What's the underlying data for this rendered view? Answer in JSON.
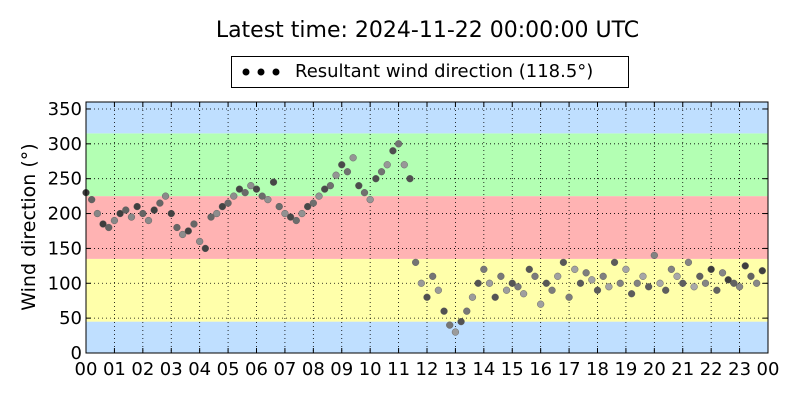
{
  "chart_data": {
    "type": "scatter",
    "title": "Latest time: 2024-11-22 00:00:00 UTC",
    "ylabel": "Wind direction (°)",
    "xlabel": "",
    "legend": {
      "label": "Resultant wind direction (118.5°)",
      "placement": "top-center"
    },
    "xlim": [
      0,
      24
    ],
    "ylim": [
      0,
      360
    ],
    "xticks": [
      "00",
      "01",
      "02",
      "03",
      "04",
      "05",
      "06",
      "07",
      "08",
      "09",
      "10",
      "11",
      "12",
      "13",
      "14",
      "15",
      "16",
      "17",
      "18",
      "19",
      "20",
      "21",
      "22",
      "23",
      "00"
    ],
    "yticks": [
      0,
      50,
      100,
      150,
      200,
      250,
      300,
      350
    ],
    "grid": true,
    "background_bands": [
      {
        "from": 0,
        "to": 45,
        "color": "#bfdfff"
      },
      {
        "from": 45,
        "to": 135,
        "color": "#ffffaa"
      },
      {
        "from": 135,
        "to": 225,
        "color": "#ffb3b3"
      },
      {
        "from": 225,
        "to": 315,
        "color": "#b3ffb3"
      },
      {
        "from": 315,
        "to": 360,
        "color": "#bfdfff"
      }
    ],
    "series": [
      {
        "name": "Resultant wind direction (118.5°)",
        "x": [
          0.0,
          0.2,
          0.4,
          0.6,
          0.8,
          1.0,
          1.2,
          1.4,
          1.6,
          1.8,
          2.0,
          2.2,
          2.4,
          2.6,
          2.8,
          3.0,
          3.2,
          3.4,
          3.6,
          3.8,
          4.0,
          4.2,
          4.4,
          4.6,
          4.8,
          5.0,
          5.2,
          5.4,
          5.6,
          5.8,
          6.0,
          6.2,
          6.4,
          6.6,
          6.8,
          7.0,
          7.2,
          7.4,
          7.6,
          7.8,
          8.0,
          8.2,
          8.4,
          8.6,
          8.8,
          9.0,
          9.2,
          9.4,
          9.6,
          9.8,
          10.0,
          10.2,
          10.4,
          10.6,
          10.8,
          11.0,
          11.2,
          11.4,
          11.6,
          11.8,
          12.0,
          12.2,
          12.4,
          12.6,
          12.8,
          13.0,
          13.2,
          13.4,
          13.6,
          13.8,
          14.0,
          14.2,
          14.4,
          14.6,
          14.8,
          15.0,
          15.2,
          15.4,
          15.6,
          15.8,
          16.0,
          16.2,
          16.4,
          16.6,
          16.8,
          17.0,
          17.2,
          17.4,
          17.6,
          17.8,
          18.0,
          18.2,
          18.4,
          18.6,
          18.8,
          19.0,
          19.2,
          19.4,
          19.6,
          19.8,
          20.0,
          20.2,
          20.4,
          20.6,
          20.8,
          21.0,
          21.2,
          21.4,
          21.6,
          21.8,
          22.0,
          22.2,
          22.4,
          22.6,
          22.8,
          23.0,
          23.2,
          23.4,
          23.6,
          23.8
        ],
        "y": [
          230,
          220,
          200,
          185,
          180,
          190,
          200,
          205,
          195,
          210,
          200,
          190,
          205,
          215,
          225,
          200,
          180,
          170,
          175,
          185,
          160,
          150,
          195,
          200,
          210,
          215,
          225,
          235,
          230,
          240,
          235,
          225,
          220,
          245,
          210,
          200,
          195,
          190,
          200,
          210,
          215,
          225,
          235,
          240,
          255,
          270,
          260,
          280,
          240,
          230,
          220,
          250,
          260,
          270,
          290,
          300,
          270,
          250,
          130,
          100,
          80,
          110,
          90,
          60,
          40,
          30,
          45,
          60,
          80,
          100,
          120,
          100,
          80,
          110,
          90,
          100,
          95,
          85,
          120,
          110,
          70,
          100,
          90,
          110,
          130,
          80,
          120,
          100,
          115,
          105,
          90,
          110,
          95,
          130,
          100,
          120,
          85,
          100,
          110,
          95,
          140,
          100,
          90,
          120,
          110,
          100,
          130,
          95,
          110,
          100,
          120,
          90,
          115,
          105,
          100,
          95,
          125,
          110,
          100,
          118
        ]
      }
    ]
  }
}
